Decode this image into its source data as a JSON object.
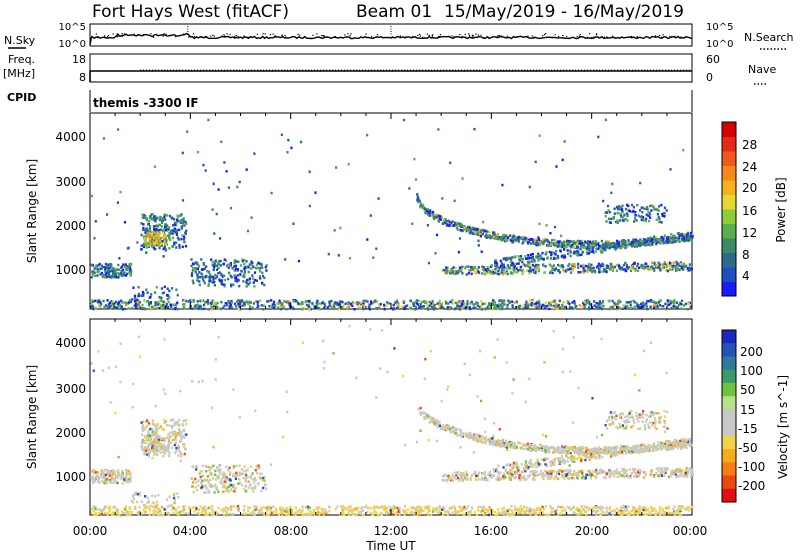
{
  "header": {
    "station": "Fort Hays West (fitACF)",
    "beam": "Beam 01",
    "dates": "15/May/2019 - 16/May/2019"
  },
  "strip_nsky": {
    "left_label": "N.Sky",
    "right_label": "N.Search",
    "left_ticks": [
      "10^5",
      "10^0"
    ],
    "right_ticks": [
      "10^5",
      "10^0"
    ]
  },
  "strip_freq": {
    "left_label_1": "Freq.",
    "left_label_2": "[MHz]",
    "right_label": "Nave",
    "left_ticks": [
      "18",
      "8"
    ],
    "right_ticks": [
      "60",
      "0"
    ]
  },
  "cpid": {
    "label": "CPID",
    "text": "themis -3300 IF"
  },
  "axes": {
    "xlabel": "Time UT",
    "ylabel": "Slant Range [km]",
    "x_ticks": [
      "00:00",
      "04:00",
      "08:00",
      "12:00",
      "16:00",
      "20:00",
      "00:00"
    ],
    "y_ticks": [
      "1000",
      "2000",
      "3000",
      "4000"
    ]
  },
  "colorbars": {
    "power": {
      "label": "Power [dB]",
      "ticks": [
        "4",
        "8",
        "12",
        "16",
        "20",
        "24",
        "28"
      ],
      "colors": [
        "#1a1aff",
        "#1f4fbf",
        "#2d6b8a",
        "#3c8a6a",
        "#58b04a",
        "#8ccd3a",
        "#e6d830",
        "#f5b21d",
        "#f58a1b",
        "#ee5a19",
        "#e22a14",
        "#d40000"
      ]
    },
    "velocity": {
      "label": "Velocity [m s^-1]",
      "ticks": [
        "200",
        "100",
        "50",
        "15",
        "-15",
        "-50",
        "-100",
        "-200"
      ],
      "colors": [
        "#1a28c0",
        "#2453b8",
        "#2f7a9a",
        "#3c9a6a",
        "#6dc440",
        "#b8e08a",
        "#c8c8c8",
        "#c8c8c8",
        "#f2d24a",
        "#f5ac1c",
        "#f57d14",
        "#ea4a12",
        "#e01010"
      ]
    }
  },
  "chart_data": {
    "type": "heatmap",
    "x_range_hours": [
      0,
      24
    ],
    "y_range_km": [
      180,
      4500
    ],
    "grid": false,
    "regions": [
      {
        "name": "early-near",
        "t": [
          0.0,
          1.6
        ],
        "r": [
          900,
          1200
        ]
      },
      {
        "name": "dawn-patch",
        "t": [
          2.0,
          3.8
        ],
        "r": [
          1500,
          2300
        ]
      },
      {
        "name": "morning-band",
        "t": [
          4.0,
          7.0
        ],
        "r": [
          700,
          1300
        ]
      },
      {
        "name": "ground-floor",
        "t": [
          0.0,
          24.0
        ],
        "r": [
          200,
          400
        ]
      },
      {
        "name": "afternoon-arc",
        "t": [
          12.8,
          24.0
        ],
        "r": [
          900,
          2800
        ]
      },
      {
        "name": "evening-upper",
        "t": [
          20.5,
          23.0
        ],
        "r": [
          2100,
          2500
        ]
      }
    ]
  }
}
